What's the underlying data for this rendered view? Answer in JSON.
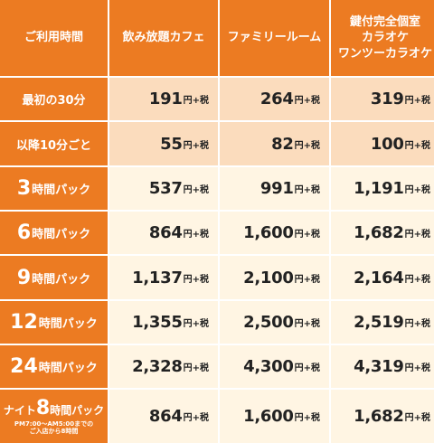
{
  "header": {
    "corner": "ご利用時間",
    "columns": [
      "飲み放題カフェ",
      "ファミリールーム",
      "鍵付完全個室\nカラオケ\nワンツーカラオケ"
    ]
  },
  "price_suffix": "円+税",
  "rows": [
    {
      "label": "最初の30分",
      "prices": [
        "191",
        "264",
        "319"
      ]
    },
    {
      "label": "以降10分ごと",
      "prices": [
        "55",
        "82",
        "100"
      ]
    },
    {
      "label_num": "3",
      "label_unit": "時間パック",
      "prices": [
        "537",
        "991",
        "1,191"
      ]
    },
    {
      "label_num": "6",
      "label_unit": "時間パック",
      "prices": [
        "864",
        "1,600",
        "1,682"
      ]
    },
    {
      "label_num": "9",
      "label_unit": "時間パック",
      "prices": [
        "1,137",
        "2,100",
        "2,164"
      ]
    },
    {
      "label_num": "12",
      "label_unit": "時間パック",
      "prices": [
        "1,355",
        "2,500",
        "2,519"
      ]
    },
    {
      "label_num": "24",
      "label_unit": "時間パック",
      "prices": [
        "2,328",
        "4,300",
        "4,319"
      ]
    },
    {
      "label_prefix": "ナイト",
      "label_num": "8",
      "label_unit": "時間パック",
      "note_line1": "PM7:00～AM5:00までの",
      "note_line2": "ご入店から8時間",
      "prices": [
        "864",
        "1,600",
        "1,682"
      ]
    }
  ],
  "colors": {
    "header_orange": "#ec7b22",
    "peach": "#fbdcbd",
    "cream": "#fff5e3"
  }
}
